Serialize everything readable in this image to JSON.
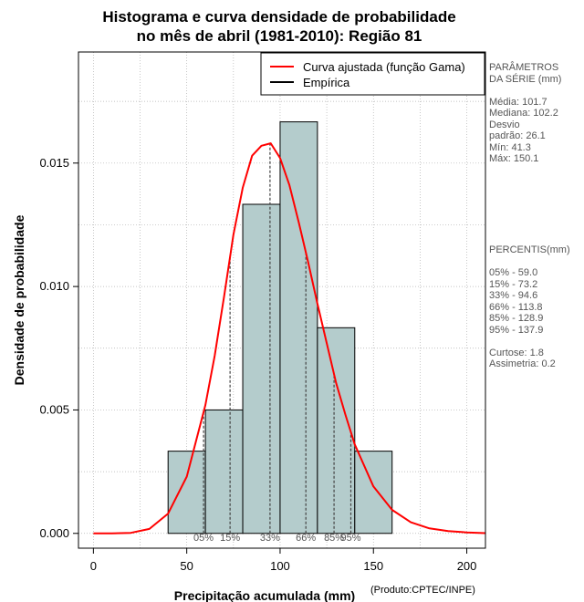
{
  "title_line1": "Histograma e curva densidade de probabilidade",
  "title_line2": "no mês de abril (1981-2010): Região 81",
  "credit": "(Produto:CPTEC/INPE)",
  "stats": {
    "heading1": "PARÂMETROS",
    "heading2": " DA SÉRIE (mm)",
    "mean": "Média:  101.7",
    "median": "Mediana:  102.2",
    "sd1": "Desvio",
    "sd2": "padrão:  26.1",
    "min": "Mín:  41.3",
    "max": "Máx:  150.1"
  },
  "percentiles_panel": {
    "heading": " PERCENTIS(mm)",
    "p05": "05% -  59.0",
    "p15": "15% -  73.2",
    "p33": "33% -  94.6",
    "p66": "66% -  113.8",
    "p85": "85% -  128.9",
    "p95": "95% -  137.9",
    "kurtosis": "Curtose:  1.8",
    "skewness": "Assimetria:  0.2"
  },
  "colors": {
    "bar_fill": "#b4cccc",
    "curve": "#ff0000",
    "grid": "#b0b0b0",
    "text_gray": "#555555"
  },
  "chart_data": {
    "type": "bar",
    "title": "Histograma e curva densidade de probabilidade no mês de abril (1981-2010): Região 81",
    "xlabel": "Precipitação acumulada (mm)",
    "ylabel": "Densidade de probabilidade",
    "xlim": [
      -8,
      210
    ],
    "ylim": [
      -0.0006,
      0.0195
    ],
    "x_ticks": [
      0,
      50,
      100,
      150,
      200
    ],
    "x_tick_labels": [
      "0",
      "50",
      "100",
      "150",
      "200"
    ],
    "y_ticks": [
      0.0,
      0.005,
      0.01,
      0.015
    ],
    "y_tick_labels": [
      "0.000",
      "0.005",
      "0.010",
      "0.015"
    ],
    "grid": true,
    "legend_position": "top-right",
    "histogram": {
      "bin_edges": [
        40,
        60,
        80,
        100,
        120,
        140,
        160
      ],
      "density": [
        0.00333,
        0.005,
        0.01333,
        0.01667,
        0.00833,
        0.00333
      ]
    },
    "gamma_curve": {
      "name": "Curva ajustada (função Gama)",
      "x": [
        0,
        10,
        20,
        30,
        40,
        50,
        60,
        65,
        70,
        75,
        80,
        85,
        90,
        95,
        100,
        105,
        110,
        115,
        120,
        125,
        130,
        135,
        140,
        150,
        160,
        170,
        180,
        190,
        200,
        210
      ],
      "y": [
        0.0,
        0.0,
        2e-05,
        0.00018,
        0.0008,
        0.0023,
        0.0052,
        0.0072,
        0.0096,
        0.0121,
        0.014,
        0.0153,
        0.0157,
        0.0158,
        0.0152,
        0.0141,
        0.0126,
        0.011,
        0.0093,
        0.0077,
        0.0061,
        0.0048,
        0.0036,
        0.0019,
        0.00095,
        0.00045,
        0.0002,
        9e-05,
        4e-05,
        1e-05
      ]
    },
    "empirical_legend": "Empírica",
    "percentiles": [
      {
        "label": "05%",
        "value": 59.0
      },
      {
        "label": "15%",
        "value": 73.2
      },
      {
        "label": "33%",
        "value": 94.6
      },
      {
        "label": "66%",
        "value": 113.8
      },
      {
        "label": "85%",
        "value": 128.9
      },
      {
        "label": "95%",
        "value": 137.9
      }
    ]
  }
}
